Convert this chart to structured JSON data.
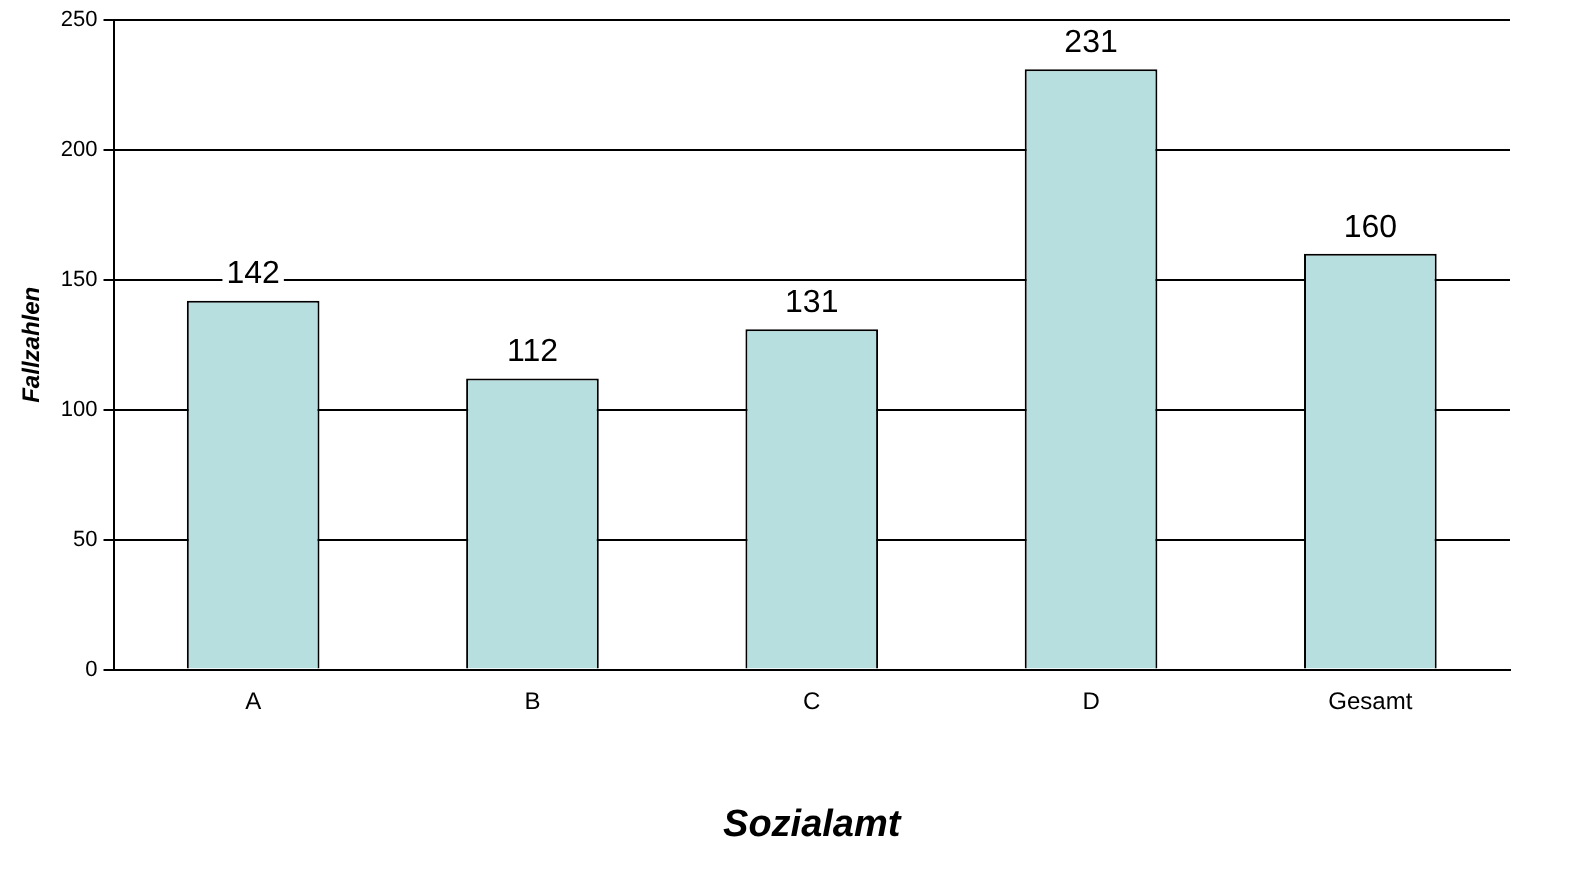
{
  "chart_data": {
    "type": "bar",
    "xlabel": "Sozialamt",
    "ylabel": "Fallzahlen",
    "categories": [
      "A",
      "B",
      "C",
      "D",
      "Gesamt"
    ],
    "values": [
      142,
      112,
      131,
      231,
      160
    ],
    "color": "#b8dfe0",
    "ylim": [
      0,
      250
    ],
    "yticks": [
      0,
      50,
      100,
      150,
      200,
      250
    ],
    "grid": "y",
    "data_labels": true
  }
}
